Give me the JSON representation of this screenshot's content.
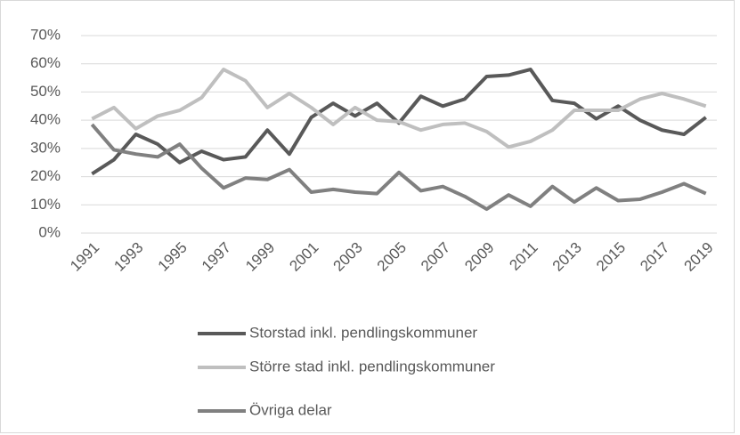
{
  "chart_data": {
    "type": "line",
    "categories": [
      1991,
      null,
      1993,
      null,
      1995,
      null,
      1997,
      null,
      1999,
      null,
      2001,
      null,
      2003,
      null,
      2005,
      null,
      2007,
      null,
      2009,
      null,
      2011,
      null,
      2013,
      null,
      2015,
      null,
      2017,
      null,
      2019
    ],
    "series": [
      {
        "name": "Storstad inkl. pendlingskommuner",
        "color": "#595959",
        "values": [
          21,
          26,
          35,
          31.5,
          25,
          29,
          26,
          27,
          36.5,
          28,
          41,
          46,
          41.5,
          46,
          39,
          48.5,
          45,
          47.5,
          55.5,
          56,
          58,
          47,
          46,
          40.5,
          45,
          40,
          36.5,
          35,
          41
        ]
      },
      {
        "name": "Större stad inkl. pendlingskommuner",
        "color": "#bfbfbf",
        "values": [
          40.5,
          44.5,
          37,
          41.5,
          43.5,
          48,
          58,
          54,
          44.5,
          49.5,
          44.5,
          38.5,
          44.5,
          40,
          39.5,
          36.5,
          38.5,
          39,
          36,
          30.5,
          32.5,
          36.5,
          43.5,
          43.5,
          43.5,
          47.5,
          49.5,
          47.5,
          45
        ]
      },
      {
        "name": "Övriga delar",
        "color": "#808080",
        "values": [
          38.5,
          29.5,
          28,
          27,
          31.5,
          23,
          16,
          19.5,
          19,
          22.5,
          14.5,
          15.5,
          14.5,
          14,
          21.5,
          15,
          16.5,
          13,
          8.5,
          13.5,
          9.5,
          16.5,
          11,
          16,
          11.5,
          12,
          14.5,
          17.5,
          14
        ]
      }
    ],
    "ylim": [
      0,
      70
    ],
    "yticks": [
      {
        "value": 0,
        "label": "0%"
      },
      {
        "value": 10,
        "label": "10%"
      },
      {
        "value": 20,
        "label": "20%"
      },
      {
        "value": 30,
        "label": "30%"
      },
      {
        "value": 40,
        "label": "40%"
      },
      {
        "value": 50,
        "label": "50%"
      },
      {
        "value": 60,
        "label": "60%"
      },
      {
        "value": 70,
        "label": "70%"
      }
    ],
    "grid": true,
    "legend": "bottom"
  }
}
